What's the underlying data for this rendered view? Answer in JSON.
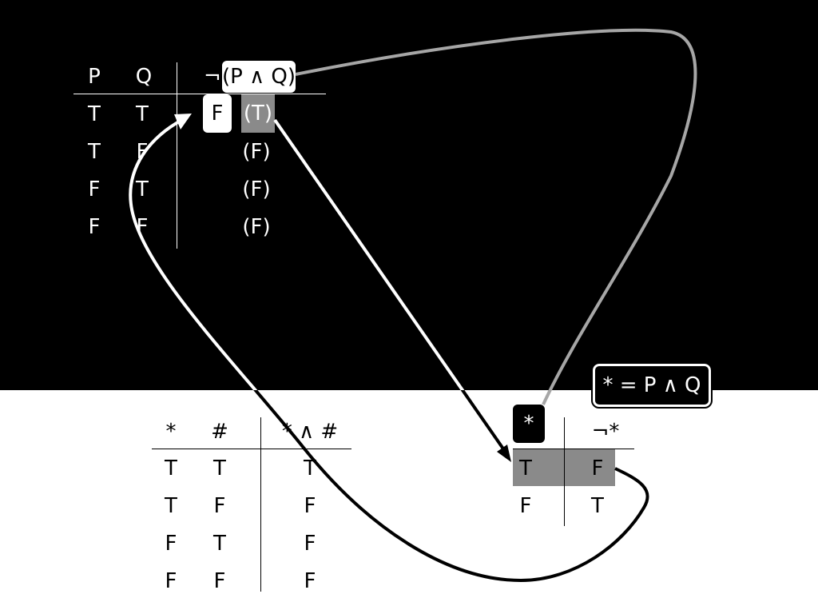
{
  "top_table": {
    "headers": {
      "p": "P",
      "q": "Q",
      "neg": "¬",
      "formula": "(P ∧ Q)"
    },
    "rows": [
      {
        "p": "T",
        "q": "T",
        "result": "F",
        "inner": "(T)"
      },
      {
        "p": "T",
        "q": "F",
        "result": "",
        "inner": "(F)"
      },
      {
        "p": "F",
        "q": "T",
        "result": "",
        "inner": "(F)"
      },
      {
        "p": "F",
        "q": "F",
        "result": "",
        "inner": "(F)"
      }
    ]
  },
  "conj_table": {
    "headers": {
      "a": "*",
      "b": "#",
      "result": "* ∧ #"
    },
    "rows": [
      {
        "a": "T",
        "b": "T",
        "result": "T"
      },
      {
        "a": "T",
        "b": "F",
        "result": "F"
      },
      {
        "a": "F",
        "b": "T",
        "result": "F"
      },
      {
        "a": "F",
        "b": "F",
        "result": "F"
      }
    ]
  },
  "neg_table": {
    "headers": {
      "a": "*",
      "result": "¬*"
    },
    "rows": [
      {
        "a": "T",
        "result": "F"
      },
      {
        "a": "F",
        "result": "T"
      }
    ]
  },
  "definition_label": "* = P ∧ Q",
  "colors": {
    "dark_band": "#000000",
    "light_band": "#ffffff",
    "highlight": "#8a8a8a",
    "gray_connector": "#a6a6a6"
  }
}
